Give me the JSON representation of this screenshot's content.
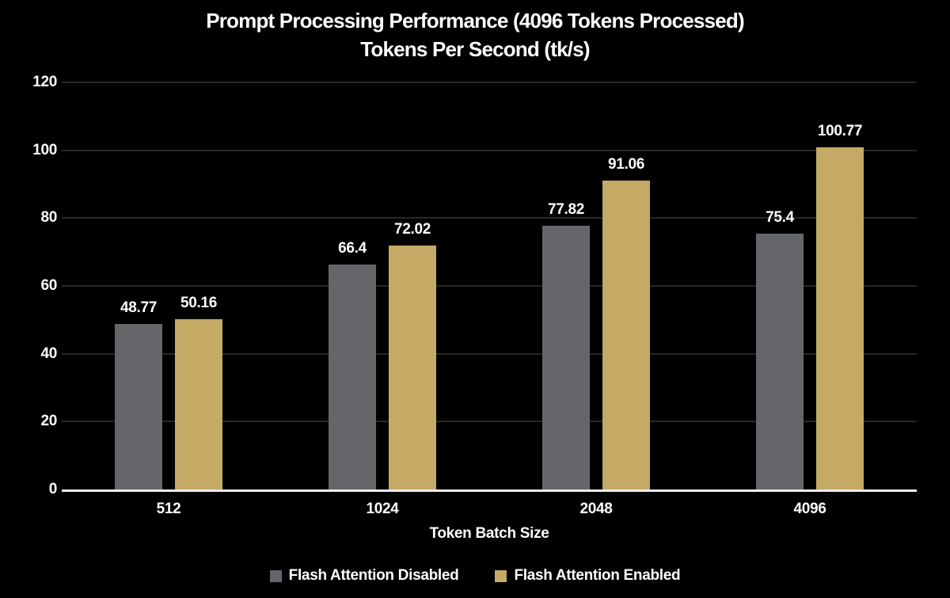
{
  "chart_data": {
    "type": "bar",
    "title": "Prompt Processing Performance (4096 Tokens Processed)",
    "subtitle": "Tokens Per Second (tk/s)",
    "xlabel": "Token Batch Size",
    "ylabel": "",
    "categories": [
      "512",
      "1024",
      "2048",
      "4096"
    ],
    "series": [
      {
        "name": "Flash Attention Disabled",
        "color": "#64666a",
        "values": [
          48.77,
          66.4,
          77.82,
          75.4
        ]
      },
      {
        "name": "Flash Attention Enabled",
        "color": "#c5aa66",
        "values": [
          50.16,
          72.02,
          91.06,
          100.77
        ]
      }
    ],
    "ylim": [
      0,
      120
    ],
    "yticks": [
      0,
      20,
      40,
      60,
      80,
      100,
      120
    ],
    "grid": true,
    "value_labels": true,
    "legend_position": "bottom",
    "colors": {
      "background": "#000000",
      "text": "#ffffff",
      "gridline": "#282828",
      "axis_line": "#ececec"
    }
  }
}
